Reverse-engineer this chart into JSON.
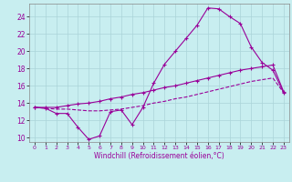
{
  "xlabel": "Windchill (Refroidissement éolien,°C)",
  "background_color": "#c8eef0",
  "grid_color": "#aad4d8",
  "line_color": "#990099",
  "xlim": [
    -0.5,
    23.5
  ],
  "ylim": [
    9.5,
    25.5
  ],
  "xticks": [
    0,
    1,
    2,
    3,
    4,
    5,
    6,
    7,
    8,
    9,
    10,
    11,
    12,
    13,
    14,
    15,
    16,
    17,
    18,
    19,
    20,
    21,
    22,
    23
  ],
  "yticks": [
    10,
    12,
    14,
    16,
    18,
    20,
    22,
    24
  ],
  "line1_x": [
    0,
    1,
    2,
    3,
    4,
    5,
    6,
    7,
    8,
    9,
    10,
    11,
    12,
    13,
    14,
    15,
    16,
    17,
    18,
    19,
    20,
    21,
    22,
    23
  ],
  "line1_y": [
    13.5,
    13.4,
    12.8,
    12.8,
    11.2,
    9.8,
    10.2,
    13.0,
    13.2,
    11.5,
    13.5,
    16.3,
    18.5,
    20.0,
    21.5,
    23.0,
    25.0,
    24.9,
    24.0,
    23.2,
    20.5,
    18.7,
    17.8,
    15.2
  ],
  "line2_x": [
    0,
    1,
    2,
    3,
    4,
    5,
    6,
    7,
    8,
    9,
    10,
    11,
    12,
    13,
    14,
    15,
    16,
    17,
    18,
    19,
    20,
    21,
    22,
    23
  ],
  "line2_y": [
    13.5,
    13.5,
    13.5,
    13.7,
    13.9,
    14.0,
    14.2,
    14.5,
    14.7,
    15.0,
    15.2,
    15.5,
    15.8,
    16.0,
    16.3,
    16.6,
    16.9,
    17.2,
    17.5,
    17.8,
    18.0,
    18.2,
    18.4,
    15.3
  ],
  "line3_x": [
    0,
    1,
    2,
    3,
    4,
    5,
    6,
    7,
    8,
    9,
    10,
    11,
    12,
    13,
    14,
    15,
    16,
    17,
    18,
    19,
    20,
    21,
    22,
    23
  ],
  "line3_y": [
    13.5,
    13.4,
    13.3,
    13.3,
    13.2,
    13.1,
    13.1,
    13.2,
    13.3,
    13.5,
    13.7,
    14.0,
    14.2,
    14.5,
    14.7,
    15.0,
    15.3,
    15.6,
    15.9,
    16.2,
    16.5,
    16.7,
    16.9,
    15.2
  ]
}
